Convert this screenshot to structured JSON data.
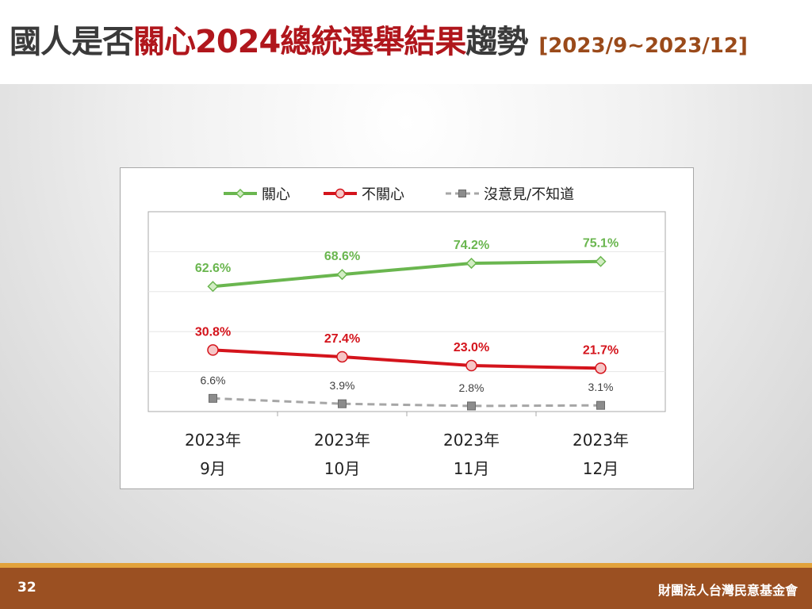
{
  "title": {
    "prefix": "國人是否",
    "highlight": "關心2024總統選舉結果",
    "suffix": "趨勢",
    "date_range": "[2023/9~2023/12]"
  },
  "footer": {
    "page_number": "32",
    "organization": "財團法人台灣民意基金會"
  },
  "colors": {
    "care": "#6ab64f",
    "not_care": "#d4141c",
    "no_opinion": "#a6a6a6",
    "title_highlight": "#b0161c",
    "footer_bg": "#9b5022"
  },
  "chart_data": {
    "type": "line",
    "categories": [
      [
        "2023年",
        "9月"
      ],
      [
        "2023年",
        "10月"
      ],
      [
        "2023年",
        "11月"
      ],
      [
        "2023年",
        "12月"
      ]
    ],
    "ylim": [
      0,
      100
    ],
    "grid": true,
    "legend_position": "top",
    "series": [
      {
        "name": "關心",
        "values": [
          62.6,
          68.6,
          74.2,
          75.1
        ],
        "labels": [
          "62.6%",
          "68.6%",
          "74.2%",
          "75.1%"
        ],
        "color": "#6ab64f",
        "marker": "diamond",
        "dashed": false
      },
      {
        "name": "不關心",
        "values": [
          30.8,
          27.4,
          23.0,
          21.7
        ],
        "labels": [
          "30.8%",
          "27.4%",
          "23.0%",
          "21.7%"
        ],
        "color": "#d4141c",
        "marker": "circle",
        "dashed": false
      },
      {
        "name": "沒意見/不知道",
        "values": [
          6.6,
          3.9,
          2.8,
          3.1
        ],
        "labels": [
          "6.6%",
          "3.9%",
          "2.8%",
          "3.1%"
        ],
        "color": "#a6a6a6",
        "marker": "square",
        "dashed": true
      }
    ]
  }
}
